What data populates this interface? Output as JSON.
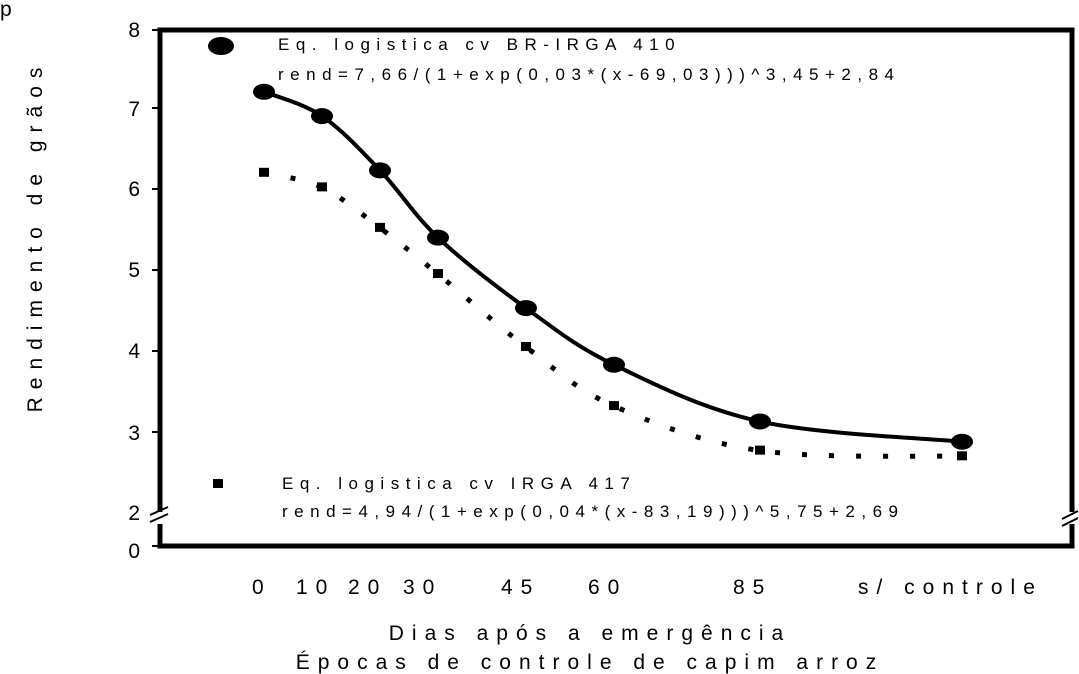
{
  "chart_data": {
    "type": "line",
    "xlabel": "Dias após a emergência",
    "xlabel2": "Épocas de controle de capim arroz",
    "ylabel": "Rendimento de grãos",
    "x_tick_labels": [
      "0",
      "10",
      "20",
      "30",
      "45",
      "60",
      "85",
      "s/ controle"
    ],
    "x_tick_values": [
      0,
      10,
      20,
      30,
      45,
      60,
      85,
      120
    ],
    "y_ticks": [
      "0",
      "2",
      "3",
      "4",
      "5",
      "6",
      "7",
      "8"
    ],
    "ylim": [
      2,
      8
    ],
    "y_axis_break": true,
    "legend_top_left_clipped_text": "p",
    "series": [
      {
        "name": "Eq. logistica cv BR-IRGA 410",
        "equation": "rend=7,66/(1+exp(0,03*(x-69,03)))^3,45+2,84",
        "marker": "circle",
        "line": "solid",
        "x": [
          0,
          10,
          20,
          30,
          45,
          60,
          85,
          120
        ],
        "values": [
          7.2,
          6.9,
          6.23,
          5.4,
          4.53,
          3.83,
          3.13,
          2.88
        ]
      },
      {
        "name": "Eq. logistica cv IRGA 417",
        "equation": "rend=4,94/(1+exp(0,04*(x-83,19)))^5,75+2,69",
        "marker": "square",
        "line": "dotted",
        "x": [
          0,
          10,
          20,
          30,
          45,
          60,
          85,
          120
        ],
        "values": [
          6.2,
          6.02,
          5.52,
          4.95,
          4.05,
          3.32,
          2.77,
          2.7
        ]
      }
    ]
  }
}
